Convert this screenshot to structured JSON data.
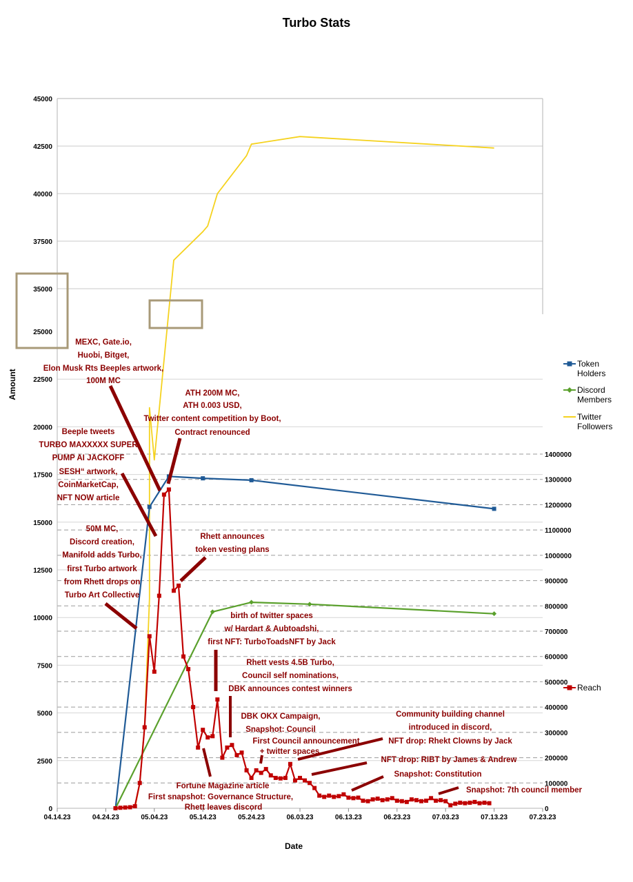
{
  "chart_data": {
    "type": "line",
    "title": "Turbo Stats",
    "xlabel": "Date",
    "ylabel": "Amount",
    "x_tick_labels": [
      "04.14.23",
      "04.24.23",
      "05.04.23",
      "05.14.23",
      "05.24.23",
      "06.03.23",
      "06.13.23",
      "06.23.23",
      "07.03.23",
      "07.13.23",
      "07.23.23"
    ],
    "xlim": [
      "2023-04-14",
      "2023-07-23"
    ],
    "y_left": {
      "upper_ticks": [
        "45000",
        "42500",
        "40000",
        "37500",
        "35000"
      ],
      "lower_ticks": [
        "25000",
        "22500",
        "20000",
        "17500",
        "15000",
        "12500",
        "10000",
        "7500",
        "5000",
        "2500",
        "0"
      ],
      "broken_axis": true
    },
    "y_right": {
      "ticks": [
        "1400000",
        "1300000",
        "1200000",
        "1100000",
        "1000000",
        "900000",
        "800000",
        "700000",
        "600000",
        "500000",
        "400000",
        "300000",
        "200000",
        "100000",
        "0"
      ],
      "ylim": [
        0,
        1400000
      ]
    },
    "grid": true,
    "legend_placement": "right",
    "series": [
      {
        "name": "Token Holders",
        "axis": "left",
        "color": "#1f5a96",
        "marker": "square",
        "points": [
          [
            "2023-04-26",
            0
          ],
          [
            "2023-05-03",
            15800
          ],
          [
            "2023-05-07",
            17400
          ],
          [
            "2023-05-14",
            17300
          ],
          [
            "2023-05-24",
            17200
          ],
          [
            "2023-07-13",
            15700
          ]
        ]
      },
      {
        "name": "Discord Members",
        "axis": "left",
        "color": "#5aa02c",
        "marker": "diamond",
        "points": [
          [
            "2023-04-26",
            0
          ],
          [
            "2023-05-16",
            10300
          ],
          [
            "2023-05-24",
            10800
          ],
          [
            "2023-06-05",
            10700
          ],
          [
            "2023-07-13",
            10200
          ]
        ]
      },
      {
        "name": "Twitter Followers",
        "axis": "left",
        "color": "#f5d21e",
        "marker": "none",
        "points": [
          [
            "2023-04-30",
            0
          ],
          [
            "2023-05-01",
            1300
          ],
          [
            "2023-05-02",
            4300
          ],
          [
            "2023-05-03",
            11000
          ],
          [
            "2023-05-03",
            21000
          ],
          [
            "2023-05-04",
            26000
          ],
          [
            "2023-05-08",
            36500
          ],
          [
            "2023-05-14",
            38000
          ],
          [
            "2023-05-15",
            38300
          ],
          [
            "2023-05-17",
            40000
          ],
          [
            "2023-05-23",
            42000
          ],
          [
            "2023-05-24",
            42600
          ],
          [
            "2023-06-03",
            43000
          ],
          [
            "2023-07-13",
            42400
          ]
        ]
      },
      {
        "name": "Reach",
        "axis": "right",
        "color": "#c00000",
        "marker": "square",
        "values_start": "2023-04-26",
        "values": [
          0,
          2000,
          3000,
          4000,
          8000,
          100000,
          320000,
          680000,
          540000,
          840000,
          1240000,
          1260000,
          860000,
          880000,
          600000,
          550000,
          400000,
          240000,
          310000,
          280000,
          285000,
          430000,
          200000,
          240000,
          250000,
          210000,
          220000,
          150000,
          120000,
          150000,
          140000,
          155000,
          130000,
          120000,
          118000,
          120000,
          175000,
          110000,
          120000,
          110000,
          100000,
          80000,
          50000,
          45000,
          50000,
          45000,
          48000,
          55000,
          42000,
          40000,
          42000,
          30000,
          28000,
          35000,
          38000,
          32000,
          35000,
          40000,
          30000,
          28000,
          25000,
          35000,
          32000,
          28000,
          30000,
          40000,
          30000,
          32000,
          28000,
          12000,
          18000,
          22000,
          20000,
          22000,
          25000,
          20000,
          22000,
          20000
        ]
      }
    ],
    "annotations": [
      "MEXC, Gate.io,",
      "Huobi, Bitget,",
      "Elon Musk Rts Beeples artwork,",
      "100M MC",
      "ATH 200M MC,",
      "ATH 0.003 USD,",
      "Twitter content competition by Boot,",
      "Contract renounced",
      "Beeple tweets",
      "TURBO MAXXXXX SUPER",
      "PUMP AI JACKOFF",
      "SESH“ artwork,",
      "CoinMarketCap,",
      "NFT NOW article",
      "50M MC,",
      "Discord creation,",
      "Manifold adds Turbo,",
      "first Turbo artwork",
      "from Rhett drops on",
      "Turbo Art Collective",
      "Rhett announces",
      "token vesting plans",
      "birth of twitter spaces",
      "w/ Hardart & Aubtoadshi,",
      "first NFT: TurboToadsNFT by Jack",
      "Rhett vests 4.5B Turbo,",
      "Council self nominations,",
      "DBK announces contest winners",
      "DBK OKX Campaign,",
      "Snapshot: Council",
      "First Council announcement",
      "+ twitter spaces",
      "Community building channel",
      "introduced in discord,",
      "NFT drop: Rhekt Clowns by Jack",
      "NFT drop: RIBT by James & Andrew",
      "Snapshot: Constitution",
      "Snapshot: 7th council member",
      "Fortune Magazine article",
      "First snapshot: Governance Structure,",
      "Rhett leaves discord"
    ]
  }
}
